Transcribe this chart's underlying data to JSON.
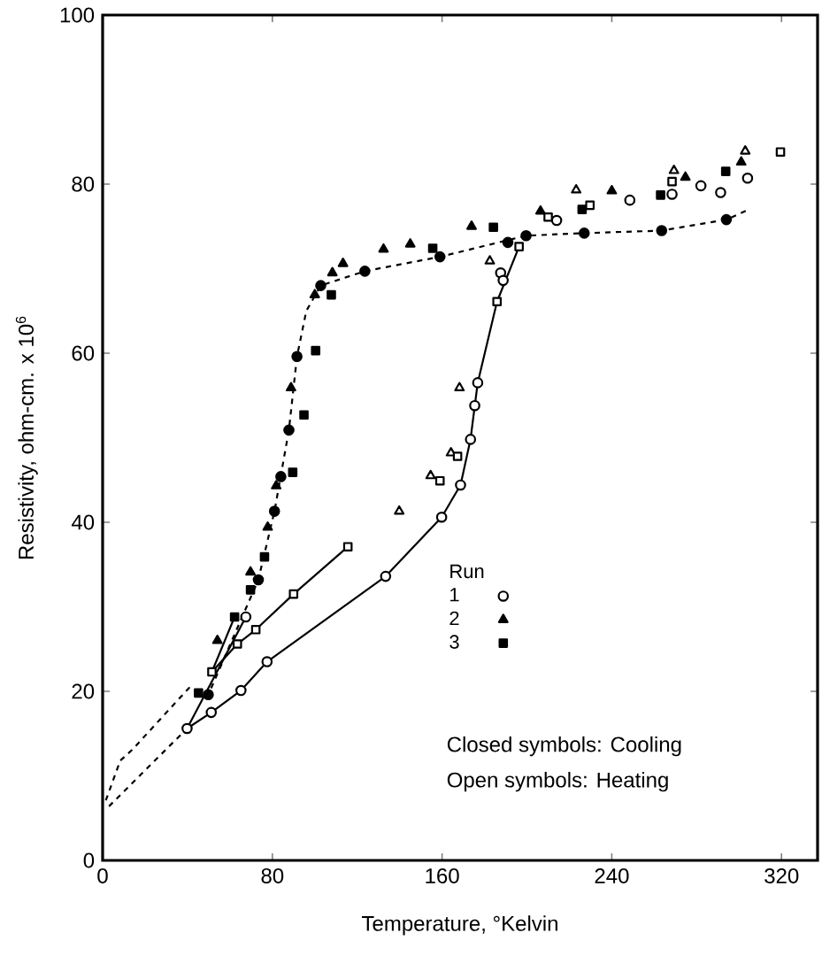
{
  "chart_data": {
    "type": "scatter",
    "xlabel": "Temperature, °Kelvin",
    "ylabel": "Resistivity, ohm-cm. x 10$^{6}$",
    "xlim": [
      0,
      337
    ],
    "ylim": [
      0,
      100
    ],
    "xticks": [
      0,
      80,
      160,
      240,
      320
    ],
    "yticks": [
      0,
      20,
      40,
      60,
      80,
      100
    ],
    "legend": "bottom right",
    "legend_title": "Run",
    "annotations": [
      "Closed symbols: Cooling",
      "Open symbols: Heating"
    ],
    "series": [
      {
        "type": "line",
        "marker": "none",
        "line_style": "dashed",
        "color": "#000000",
        "x": [
          1.5,
          8.3,
          14,
          40.7,
          49.8,
          73.4,
          81,
          87.8,
          91.6,
          96,
          102.8,
          123.6,
          159,
          199.6,
          227,
          263.5,
          294,
          303.7
        ],
        "values": [
          7.1,
          11.8,
          13.1,
          20.4,
          19.6,
          33.2,
          41.3,
          50.9,
          59.6,
          65,
          68.0,
          69.7,
          71.4,
          73.9,
          74.2,
          74.5,
          75.8,
          76.9
        ]
      },
      {
        "type": "line",
        "marker": "none",
        "line_style": "dashed",
        "color": "#000000",
        "x": [
          3,
          39.8
        ],
        "values": [
          6.4,
          15.6
        ]
      },
      {
        "type": "line",
        "marker": "none",
        "line_style": "solid",
        "color": "#000000",
        "x": [
          39.8,
          51.2,
          65.2,
          77.5,
          133.4,
          159.8,
          168.7,
          173.4,
          176.8,
          185.9,
          196.3
        ],
        "values": [
          15.6,
          17.5,
          20.1,
          23.5,
          33.6,
          40.6,
          44.4,
          49.8,
          56.5,
          66.1,
          72.6
        ]
      },
      {
        "type": "line",
        "marker": "none",
        "line_style": "solid",
        "color": "#000000",
        "x": [
          39.8,
          67.5
        ],
        "values": [
          15.6,
          28.8
        ]
      },
      {
        "type": "line",
        "marker": "none",
        "line_style": "solid",
        "color": "#000000",
        "x": [
          51.5,
          63.5,
          72.2,
          90,
          115.6
        ],
        "values": [
          22.3,
          25.6,
          27.3,
          31.5,
          37.1
        ]
      },
      {
        "type": "line",
        "marker": "none",
        "line_style": "solid",
        "color": "#000000",
        "x": [
          51.5,
          62.2
        ],
        "values": [
          22.3,
          28.8
        ]
      },
      {
        "marker": "circle",
        "color": "#000000",
        "x": [
          49.8,
          73.4,
          81,
          84,
          87.8,
          91.6,
          102.8,
          123.6,
          159,
          191,
          199.6,
          227,
          263.5,
          294
        ],
        "values": [
          19.6,
          33.2,
          41.3,
          45.4,
          50.9,
          59.6,
          68.0,
          69.7,
          71.4,
          73.1,
          73.9,
          74.2,
          74.5,
          75.8
        ]
      },
      {
        "marker": "circle",
        "name": "1",
        "color": "#ffffff",
        "x": [
          39.8,
          51.2,
          65.2,
          67.5,
          77.5,
          133.4,
          159.8,
          168.7,
          173.4,
          175.4,
          176.8,
          187.6,
          188.8,
          214,
          248.5,
          268.4,
          282,
          291.3,
          304
        ],
        "values": [
          15.6,
          17.5,
          20.1,
          28.8,
          23.5,
          33.6,
          40.6,
          44.4,
          49.8,
          53.8,
          56.5,
          69.5,
          68.6,
          75.7,
          78.1,
          78.8,
          79.8,
          79.0,
          80.7
        ]
      },
      {
        "marker": "triangle",
        "name": "2",
        "color": "#000000",
        "x": [
          54.1,
          69.7,
          77.8,
          81.8,
          88.8,
          100,
          108.3,
          113.3,
          132.4,
          145,
          173.9,
          206.4,
          240,
          274.7,
          301
        ],
        "values": [
          26.0,
          34.1,
          39.4,
          44.3,
          55.9,
          66.9,
          69.5,
          70.6,
          72.3,
          72.9,
          75.0,
          76.8,
          79.2,
          80.8,
          82.6
        ]
      },
      {
        "marker": "triangle",
        "color": "#ffffff",
        "x": [
          139.8,
          154.6,
          164.2,
          168.2,
          182.5,
          223.2,
          269.3,
          302.9
        ],
        "values": [
          41.3,
          45.5,
          48.2,
          55.9,
          70.9,
          79.3,
          81.6,
          83.9
        ]
      },
      {
        "marker": "square",
        "name": "3",
        "color": "#000000",
        "x": [
          45.2,
          62.2,
          69.7,
          76.3,
          89.6,
          94.9,
          100.4,
          107.8,
          155.6,
          184.2,
          226,
          263,
          293.7
        ],
        "values": [
          19.8,
          28.8,
          32.0,
          35.9,
          45.9,
          52.7,
          60.3,
          66.9,
          72.4,
          74.9,
          77.0,
          78.7,
          81.5
        ]
      },
      {
        "marker": "square",
        "color": "#ffffff",
        "x": [
          51.5,
          63.5,
          72.2,
          90,
          115.6,
          159,
          167.3,
          185.9,
          196.3,
          210,
          229.7,
          268.4,
          319.5
        ],
        "values": [
          22.3,
          25.6,
          27.3,
          31.5,
          37.1,
          44.9,
          47.8,
          66.1,
          72.6,
          76.1,
          77.5,
          80.3,
          83.8
        ]
      }
    ]
  }
}
